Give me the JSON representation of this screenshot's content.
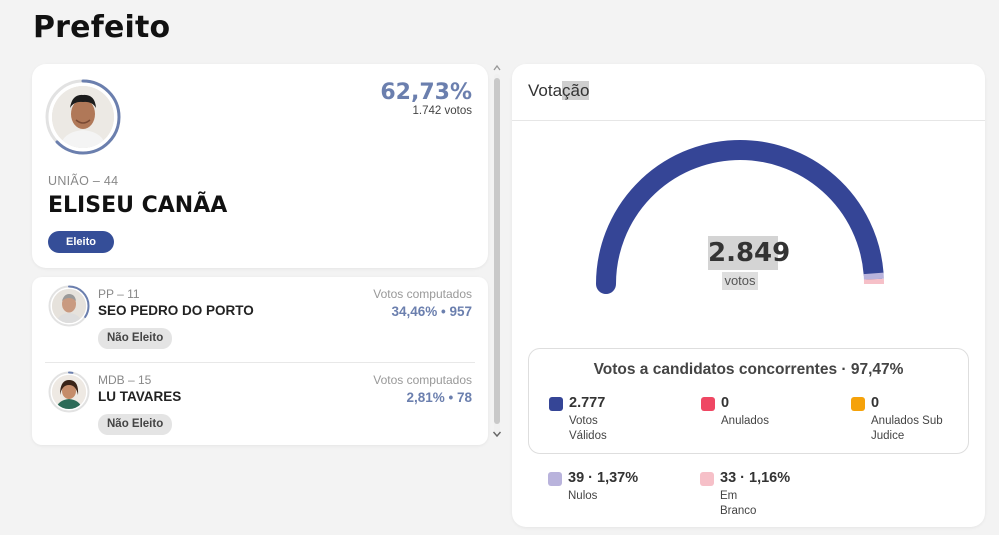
{
  "page": {
    "title": "Prefeito"
  },
  "winner": {
    "party": "UNIÃO – 44",
    "name": "ELISEU CANÃA",
    "percent": "62,73%",
    "votes": "1.742 votos",
    "status": "Eleito",
    "percent_value": 62.73
  },
  "candidates": [
    {
      "party": "PP – 11",
      "name": "SEO PEDRO DO PORTO",
      "computed_label": "Votos computados",
      "result": "34,46%  •  957",
      "status": "Não Eleito",
      "percent_value": 34.46
    },
    {
      "party": "MDB – 15",
      "name": "LU TAVARES",
      "computed_label": "Votos computados",
      "result": "2,81%  •  78",
      "status": "Não Eleito",
      "percent_value": 2.81
    }
  ],
  "votacao": {
    "title_a": "Vota",
    "title_b": "ção",
    "total": "2.849",
    "unit": "votos",
    "summary_title": "Votos a candidatos concorrentes · 97,47%",
    "stats": {
      "validos": {
        "value": "2.777",
        "label": "Votos Válidos",
        "color": "#354596"
      },
      "anulados": {
        "value": "0",
        "label": "Anulados",
        "color": "#ef4763"
      },
      "subjudice": {
        "value": "0",
        "label": "Anulados Sub Judice",
        "color": "#f5a20a"
      },
      "nulos": {
        "value": "39 · 1,37%",
        "label": "Nulos",
        "color": "#b9b3dc"
      },
      "branco": {
        "value": "33 · 1,16%",
        "label": "Em Branco",
        "color": "#f6c0c8"
      }
    }
  }
}
